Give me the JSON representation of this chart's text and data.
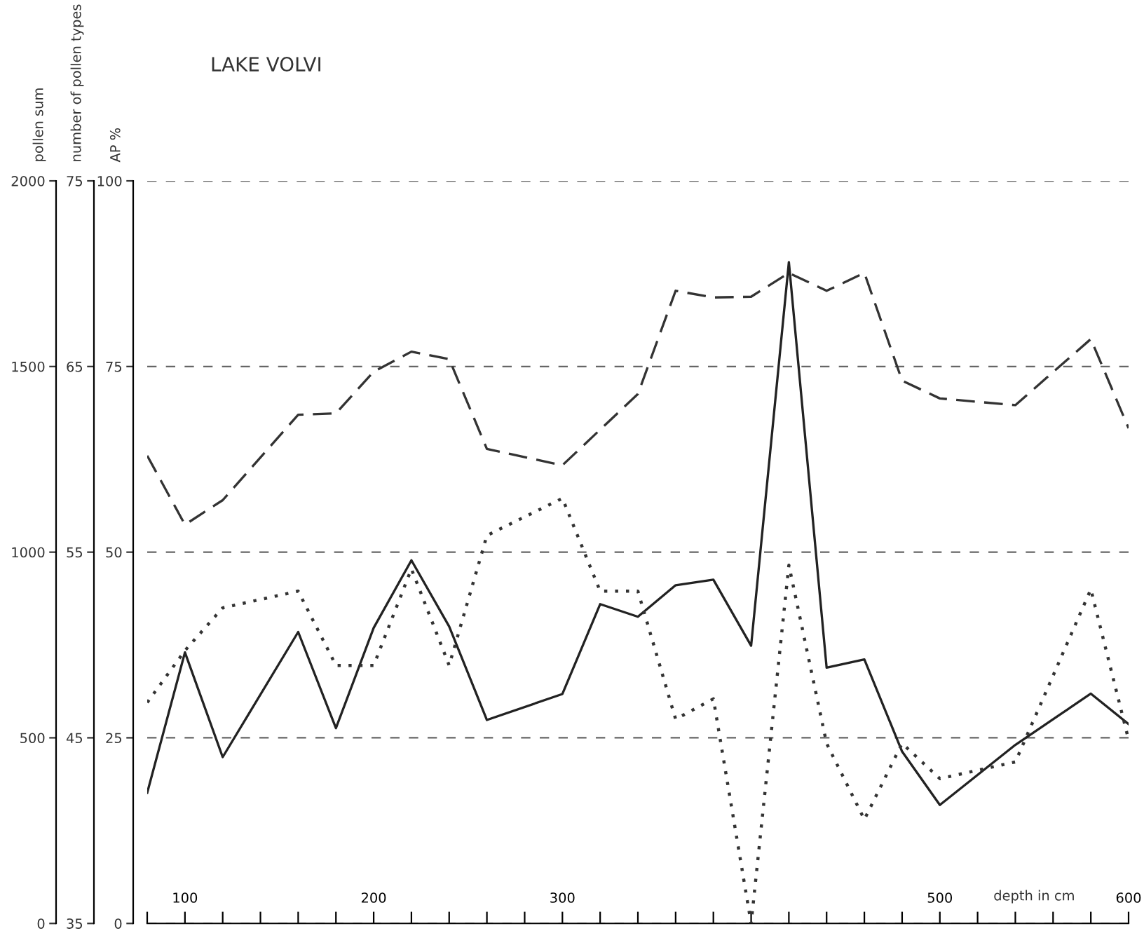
{
  "chart_data": {
    "type": "line",
    "title": "LAKE VOLVI",
    "xlabel": "depth in cm",
    "ylabel": "pollen sum",
    "y2label": "number of pollen types",
    "y3label": "AP %",
    "xlim": [
      80,
      600
    ],
    "xticks": [
      {
        "value": 80,
        "label": null
      },
      100,
      {
        "value": 120,
        "label": null
      },
      {
        "value": 140,
        "label": null
      },
      {
        "value": 160,
        "label": null
      },
      {
        "value": 180,
        "label": null
      },
      200,
      {
        "value": 220,
        "label": null
      },
      {
        "value": 240,
        "label": null
      },
      {
        "value": 260,
        "label": null
      },
      {
        "value": 280,
        "label": null
      },
      300,
      {
        "value": 320,
        "label": null
      },
      {
        "value": 340,
        "label": null
      },
      {
        "value": 360,
        "label": null
      },
      {
        "value": 380,
        "label": null
      },
      {
        "value": 400,
        "label": null
      },
      {
        "value": 420,
        "label": null
      },
      {
        "value": 440,
        "label": null
      },
      {
        "value": 460,
        "label": null
      },
      {
        "value": 480,
        "label": null
      },
      500,
      {
        "value": 520,
        "label": null
      },
      {
        "value": 540,
        "label": null
      },
      {
        "value": 560,
        "label": null
      },
      {
        "value": 580,
        "label": null
      },
      600
    ],
    "ylim": [
      0,
      2000
    ],
    "yticks": [
      0,
      500,
      1000,
      1500,
      2000
    ],
    "y2lim": [
      35,
      75
    ],
    "y2ticks": [
      35,
      45,
      55,
      65,
      75
    ],
    "y3lim": [
      0,
      100
    ],
    "y3ticks": [
      0,
      25,
      50,
      75,
      100
    ],
    "grid": "y",
    "legend": false,
    "marker": "none",
    "series": [
      {
        "axis": "y3",
        "color": "#333333",
        "line_style": "dashed",
        "x": [
          80,
          100,
          120,
          160,
          180,
          200,
          220,
          240,
          260,
          300,
          340,
          360,
          380,
          400,
          420,
          440,
          460,
          480,
          500,
          540,
          580,
          600
        ],
        "values": [
          63.0,
          53.7,
          57.0,
          68.5,
          68.7,
          74.3,
          77.0,
          76.0,
          63.9,
          61.7,
          71.3,
          85.2,
          84.3,
          84.4,
          87.6,
          85.2,
          87.6,
          73.1,
          70.7,
          69.8,
          78.7,
          66.7
        ]
      },
      {
        "axis": "y",
        "color": "#222222",
        "line_style": "solid",
        "x": [
          80,
          100,
          120,
          160,
          180,
          200,
          220,
          240,
          260,
          300,
          320,
          340,
          360,
          380,
          400,
          420,
          440,
          460,
          480,
          500,
          540,
          580,
          600
        ],
        "values": [
          352,
          730,
          448,
          785,
          526,
          796,
          978,
          800,
          548,
          618,
          860,
          826,
          911,
          926,
          748,
          1781,
          689,
          711,
          463,
          319,
          481,
          619,
          537
        ]
      },
      {
        "axis": "y2",
        "color": "#333333",
        "line_style": "dotted",
        "x": [
          80,
          100,
          120,
          160,
          180,
          200,
          220,
          240,
          260,
          300,
          320,
          340,
          360,
          380,
          400,
          420,
          440,
          460,
          480,
          500,
          540,
          580,
          600
        ],
        "values": [
          46.9,
          49.7,
          52.0,
          52.9,
          48.9,
          48.9,
          54.1,
          48.9,
          55.9,
          57.9,
          52.9,
          52.9,
          46.0,
          47.1,
          35,
          54.3,
          44.7,
          40.6,
          44.7,
          42.8,
          43.7,
          53.0,
          44.9
        ]
      }
    ]
  }
}
